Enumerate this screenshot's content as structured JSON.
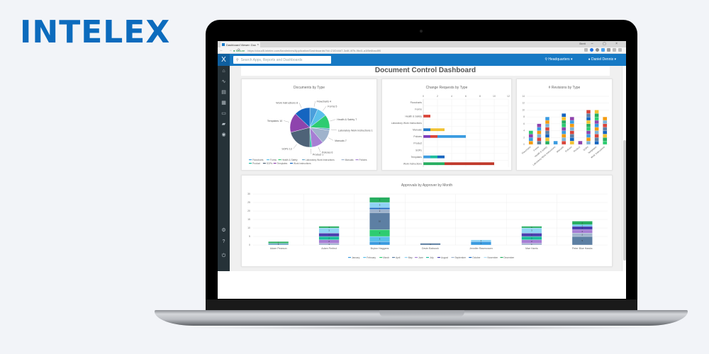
{
  "brand": {
    "name": "INTELEX",
    "color": "#0c6bbd"
  },
  "browser": {
    "tab_title": "Dashboard Viewer: Doc",
    "tab_close": "×",
    "window_user": "Brett",
    "window_controls": "– ▢ ×",
    "nav_buttons": "← → ⟳",
    "secure_label": "● Secure",
    "url": "https://cloud5.intelex.com/ilandmines/Application/Dashboards/?id=21f2d4d7-3c6f-4f7b-9bd1-a1f8e6bac8f0"
  },
  "app": {
    "logo_glyph": "X",
    "search_placeholder": "Search Apps, Reports and Dashboards",
    "search_icon": "⚲",
    "location": "⚲ Headquarters ▾",
    "user": "● Daniel Dennis ▾",
    "sidebar_icons": [
      "home-icon",
      "workflow-icon",
      "reports-icon",
      "dashboards-icon",
      "calendar-icon",
      "chat-icon",
      "eye-icon",
      "settings-icon",
      "help-icon",
      "power-icon"
    ],
    "sidebar_glyphs": [
      "⌂",
      "∿",
      "▤",
      "▦",
      "▭",
      "▰",
      "◉",
      "⚙",
      "?",
      "⏻"
    ],
    "accent": "#1679c4",
    "sidebar_bg": "#263238"
  },
  "dashboard": {
    "title": "Document Control Dashboard"
  },
  "chart_data": [
    {
      "type": "pie",
      "title": "Documents by Type",
      "categories": [
        "Flowcharts",
        "Forms",
        "Health & Safety",
        "Laboratory Work Instructions",
        "Manuals",
        "Policies",
        "Product",
        "SOPs",
        "Templates",
        "Work Instructions"
      ],
      "values": [
        4,
        5,
        7,
        1,
        7,
        6,
        1,
        13,
        10,
        8
      ],
      "labels": [
        "Flowcharts 4",
        "Forms 5",
        "Health & Safety 7",
        "Laboratory Work Instructions 1",
        "Manuals 7",
        "Policies 6",
        "Product 1",
        "SOPs 13",
        "Templates 10",
        "Work Instructions 8"
      ],
      "colors": [
        "#4a9fdc",
        "#5bc0eb",
        "#2ecc71",
        "#6fa8c7",
        "#9fb3cc",
        "#a67fd4",
        "#1abc9c",
        "#4e6378",
        "#8e44ad",
        "#1565c0"
      ],
      "legend_position": "bottom"
    },
    {
      "type": "bar",
      "orientation": "horizontal",
      "stacked": true,
      "title": "Change Requests by Type",
      "categories": [
        "Flowcharts",
        "Forms",
        "Health & Safety",
        "Laboratory Work Instructions",
        "Manuals",
        "Policies",
        "Product",
        "SOPs",
        "Templates",
        "Work Instructions"
      ],
      "segments": [
        [],
        [],
        [
          {
            "v": 1,
            "c": "#d9453a"
          }
        ],
        [],
        [
          {
            "v": 1,
            "c": "#1f78c8"
          },
          {
            "v": 2,
            "c": "#f1c232"
          }
        ],
        [
          {
            "v": 1,
            "c": "#7d3cba"
          },
          {
            "v": 1,
            "c": "#d9453a"
          },
          {
            "v": 4,
            "c": "#3a9be0"
          }
        ],
        [],
        [],
        [
          {
            "v": 1,
            "c": "#3a9be0"
          },
          {
            "v": 1,
            "c": "#1abc9c"
          },
          {
            "v": 1,
            "c": "#1565c0"
          }
        ],
        [
          {
            "v": 3,
            "c": "#27ae60"
          },
          {
            "v": 7,
            "c": "#c0392b"
          }
        ]
      ],
      "totals": [
        0,
        0,
        1,
        0,
        3,
        6,
        0,
        0,
        3,
        10
      ],
      "xticks": [
        0,
        2,
        4,
        6,
        8,
        10,
        12
      ],
      "xlim": [
        0,
        12
      ],
      "grid": true
    },
    {
      "type": "bar",
      "stacked": true,
      "title": "# Revisions by Type",
      "categories": [
        "Flowcharts",
        "Forms",
        "Health & Safety",
        "Laboratory Work Instructions",
        "Manuals",
        "Policies",
        "Product",
        "SOPs",
        "Templates",
        "Work Instructions"
      ],
      "values": [
        4,
        6,
        8,
        1,
        9,
        8,
        1,
        10,
        10,
        8
      ],
      "yticks": [
        0,
        2,
        4,
        6,
        8,
        10,
        12,
        14
      ],
      "ylim": [
        0,
        14
      ],
      "segment_colors": [
        "#f39c12",
        "#5d7fa3",
        "#27ae60",
        "#3a9be0",
        "#d9453a",
        "#f1c232",
        "#8e44ad",
        "#7fb3d5",
        "#1565c0",
        "#2ecc71"
      ],
      "grid": true
    },
    {
      "type": "bar",
      "stacked": true,
      "title": "Approvals by Approver by Month",
      "categories": [
        "Adam Pearson",
        "Adam Perfect",
        "Bryton Haggans",
        "Devin Babcock",
        "Jennifer Rasmussen",
        "Mae Harris",
        "Peter Blue Hawks"
      ],
      "values": [
        2,
        11,
        28,
        1,
        3,
        11,
        14
      ],
      "segments": [
        [
          {
            "v": 1,
            "c": "#6fa8c7"
          },
          {
            "v": 1,
            "c": "#27ae60"
          }
        ],
        [
          {
            "v": 1,
            "c": "#9fb3cc"
          },
          {
            "v": 2,
            "c": "#a67fd4"
          },
          {
            "v": 2,
            "c": "#1abc9c"
          },
          {
            "v": 2,
            "c": "#4a3fb0"
          },
          {
            "v": 3,
            "c": "#8fd3f4"
          },
          {
            "v": 1,
            "c": "#27ae60"
          }
        ],
        [
          {
            "v": 2,
            "c": "#3a9be0"
          },
          {
            "v": 3,
            "c": "#5bc0eb"
          },
          {
            "v": 4,
            "c": "#2ecc71"
          },
          {
            "v": 10,
            "c": "#5d7fa3"
          },
          {
            "v": 2,
            "c": "#9fb3cc"
          },
          {
            "v": 1,
            "c": "#1565c0"
          },
          {
            "v": 3,
            "c": "#8fd3f4"
          },
          {
            "v": 3,
            "c": "#27ae60"
          }
        ],
        [
          {
            "v": 1,
            "c": "#5d7fa3"
          }
        ],
        [
          {
            "v": 2,
            "c": "#3a9be0"
          },
          {
            "v": 1,
            "c": "#8fd3f4"
          }
        ],
        [
          {
            "v": 1,
            "c": "#9fb3cc"
          },
          {
            "v": 2,
            "c": "#a67fd4"
          },
          {
            "v": 2,
            "c": "#1abc9c"
          },
          {
            "v": 2,
            "c": "#4a3fb0"
          },
          {
            "v": 3,
            "c": "#8fd3f4"
          },
          {
            "v": 1,
            "c": "#27ae60"
          }
        ],
        [
          {
            "v": 5,
            "c": "#5d7fa3"
          },
          {
            "v": 2,
            "c": "#9fb3cc"
          },
          {
            "v": 2,
            "c": "#a67fd4"
          },
          {
            "v": 2,
            "c": "#4a3fb0"
          },
          {
            "v": 1,
            "c": "#5bc0eb"
          },
          {
            "v": 2,
            "c": "#27ae60"
          }
        ]
      ],
      "yticks": [
        0,
        5,
        10,
        15,
        20,
        25,
        30
      ],
      "ylim": [
        0,
        30
      ],
      "legend": [
        "January",
        "February",
        "March",
        "April",
        "May",
        "June",
        "July",
        "August",
        "September",
        "October",
        "November",
        "December"
      ],
      "legend_colors": [
        "#3a9be0",
        "#5bc0eb",
        "#2ecc71",
        "#5d7fa3",
        "#8fd3f4",
        "#a67fd4",
        "#1abc9c",
        "#4a3fb0",
        "#9fb3cc",
        "#1565c0",
        "#b3e0f7",
        "#27ae60"
      ],
      "legend_position": "bottom",
      "grid": true
    }
  ]
}
